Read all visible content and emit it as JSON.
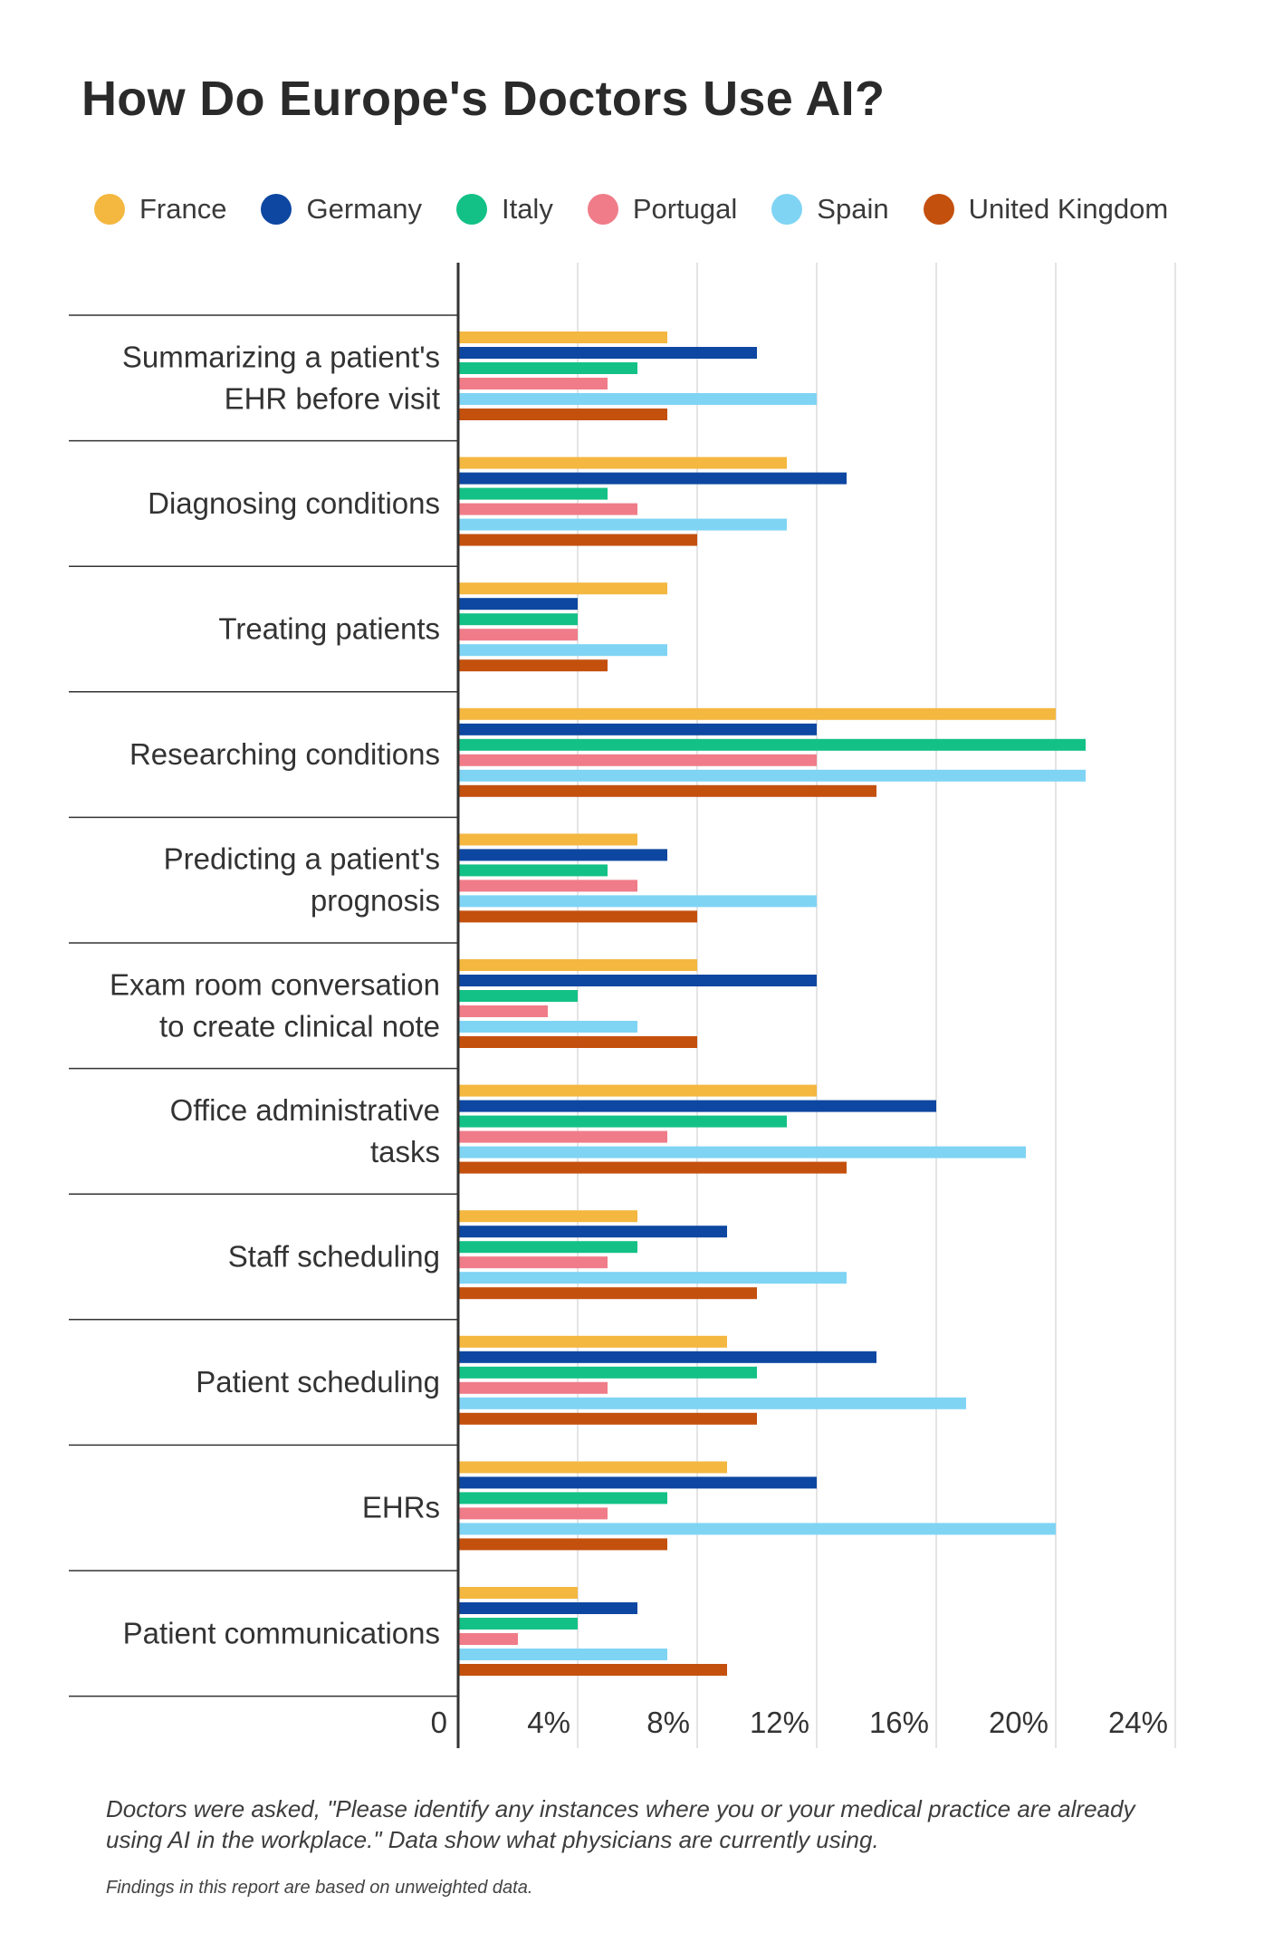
{
  "title": "How Do Europe's Doctors Use AI?",
  "notes": {
    "question": "Doctors were asked, \"Please identify any instances where you or your medical practice are already using AI in the workplace.\"  Data show what physicians are currently using.",
    "weighting": "Findings in this report are based on unweighted data."
  },
  "chart_data": {
    "type": "bar",
    "orientation": "horizontal",
    "title": "How Do Europe's Doctors Use AI?",
    "xlabel": "",
    "ylabel": "",
    "xlim": [
      0,
      24
    ],
    "x_ticks": [
      {
        "value": 0,
        "label": "0"
      },
      {
        "value": 4,
        "label": "4%"
      },
      {
        "value": 8,
        "label": "8%"
      },
      {
        "value": 12,
        "label": "12%"
      },
      {
        "value": 16,
        "label": "16%"
      },
      {
        "value": 20,
        "label": "20%"
      },
      {
        "value": 24,
        "label": "24%"
      }
    ],
    "grid": "vertical",
    "legend_position": "top",
    "categories": [
      [
        "Summarizing a patient's",
        "EHR before visit"
      ],
      [
        "Diagnosing conditions"
      ],
      [
        "Treating patients"
      ],
      [
        "Researching conditions"
      ],
      [
        "Predicting a patient's",
        "prognosis"
      ],
      [
        "Exam room conversation",
        "to create clinical note"
      ],
      [
        "Office administrative",
        "tasks"
      ],
      [
        "Staff scheduling"
      ],
      [
        "Patient scheduling"
      ],
      [
        "EHRs"
      ],
      [
        "Patient communications"
      ]
    ],
    "series": [
      {
        "name": "France",
        "color": "#F4B740",
        "values": [
          7,
          11,
          7,
          20,
          6,
          8,
          12,
          6,
          9,
          9,
          4
        ]
      },
      {
        "name": "Germany",
        "color": "#0D47A1",
        "values": [
          10,
          13,
          4,
          12,
          7,
          12,
          16,
          9,
          14,
          12,
          6
        ]
      },
      {
        "name": "Italy",
        "color": "#13C186",
        "values": [
          6,
          5,
          4,
          21,
          5,
          4,
          11,
          6,
          10,
          7,
          4
        ]
      },
      {
        "name": "Portugal",
        "color": "#F07C89",
        "values": [
          5,
          6,
          4,
          12,
          6,
          3,
          7,
          5,
          5,
          5,
          2
        ]
      },
      {
        "name": "Spain",
        "color": "#7FD4F4",
        "values": [
          12,
          11,
          7,
          21,
          12,
          6,
          19,
          13,
          17,
          20,
          7
        ]
      },
      {
        "name": "United Kingdom",
        "color": "#C4500E",
        "values": [
          7,
          8,
          5,
          14,
          8,
          8,
          13,
          10,
          10,
          7,
          9
        ]
      }
    ]
  }
}
